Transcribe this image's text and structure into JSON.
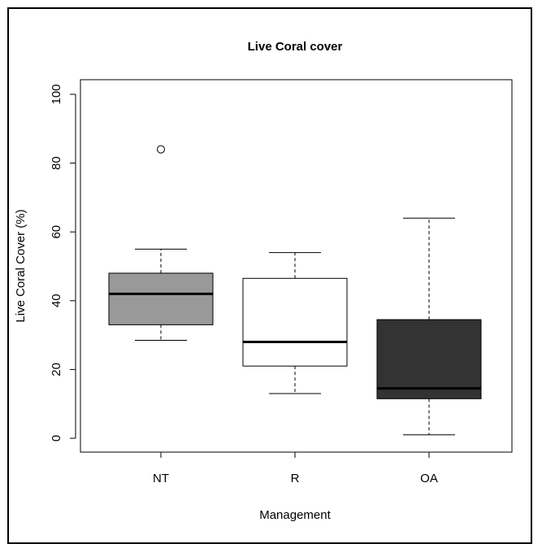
{
  "chart_data": {
    "type": "boxplot",
    "title": "Live Coral cover",
    "xlabel": "Management",
    "ylabel": "Live Coral Cover (%)",
    "ylim": [
      0,
      100
    ],
    "yticks": [
      "0",
      "20",
      "40",
      "60",
      "80",
      "100"
    ],
    "categories": [
      "NT",
      "R",
      "OA"
    ],
    "boxes": [
      {
        "category": "NT",
        "whisker_low": 28.5,
        "q1": 33,
        "median": 42,
        "q3": 48,
        "whisker_high": 55,
        "outliers": [
          84
        ],
        "fill": "#999999"
      },
      {
        "category": "R",
        "whisker_low": 13,
        "q1": 21,
        "median": 28,
        "q3": 46.5,
        "whisker_high": 54,
        "outliers": [],
        "fill": "#ffffff"
      },
      {
        "category": "OA",
        "whisker_low": 1,
        "q1": 11.5,
        "median": 14.5,
        "q3": 34.5,
        "whisker_high": 64,
        "outliers": [],
        "fill": "#333333"
      }
    ],
    "grid": false,
    "legend": "none"
  }
}
